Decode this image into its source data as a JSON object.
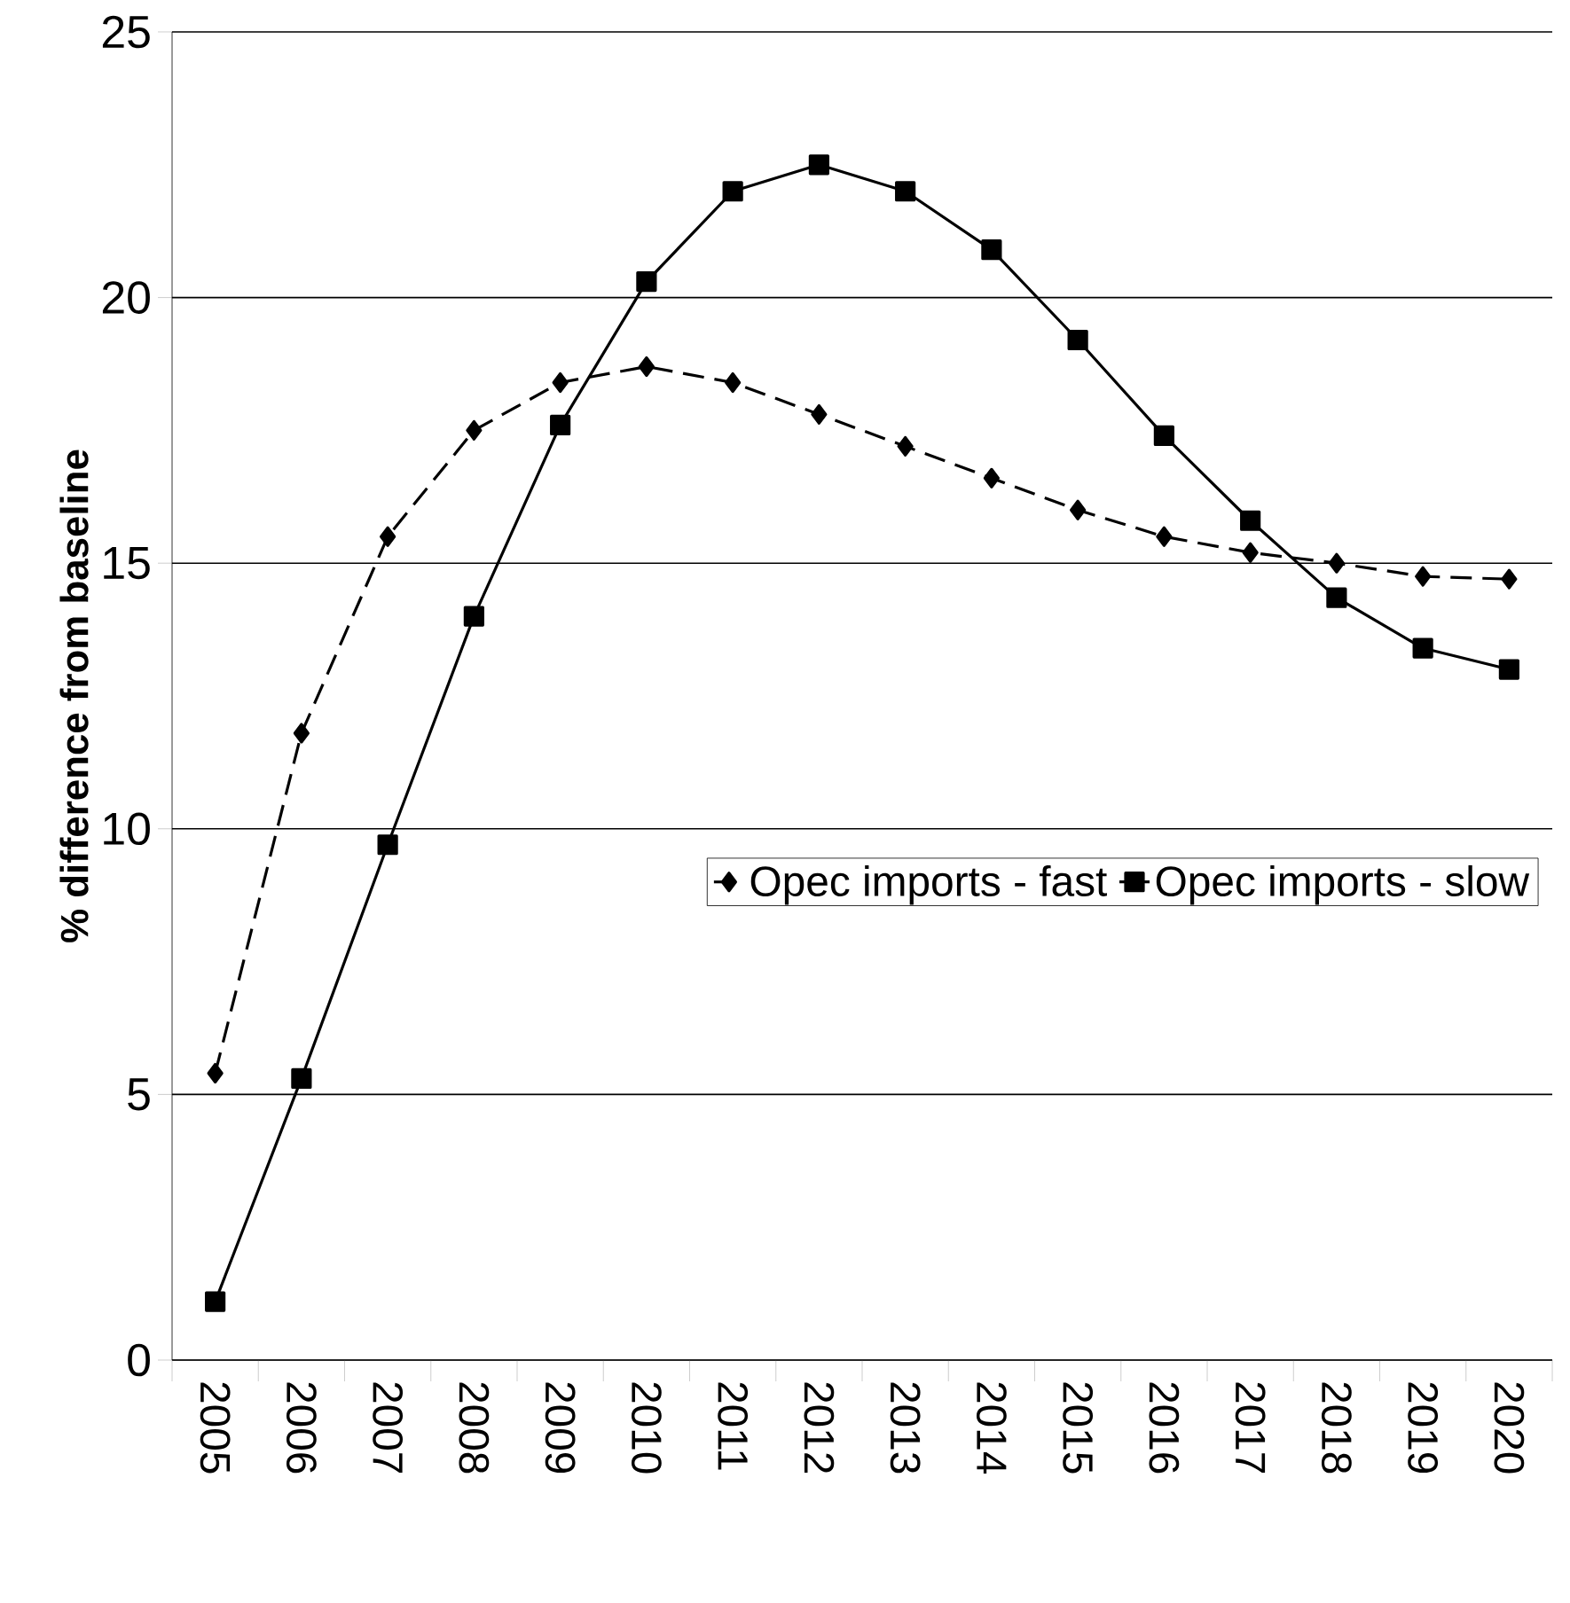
{
  "chart_data": {
    "type": "line",
    "ylabel": "% difference from baseline",
    "categories": [
      "2005",
      "2006",
      "2007",
      "2008",
      "2009",
      "2010",
      "2011",
      "2012",
      "2013",
      "2014",
      "2015",
      "2016",
      "2017",
      "2018",
      "2019",
      "2020"
    ],
    "series": [
      {
        "name": "Opec imports - fast",
        "color": "#000000",
        "marker": "diamond",
        "line_style": "dashed",
        "values": [
          5.4,
          11.8,
          15.5,
          17.5,
          18.4,
          18.7,
          18.4,
          17.8,
          17.2,
          16.6,
          16.0,
          15.5,
          15.2,
          15.0,
          14.75,
          14.7
        ]
      },
      {
        "name": "Opec imports - slow",
        "color": "#000000",
        "marker": "square",
        "line_style": "solid",
        "values": [
          1.1,
          5.3,
          9.7,
          14.0,
          17.6,
          20.3,
          22.0,
          22.5,
          22.0,
          20.9,
          19.2,
          17.4,
          15.8,
          14.35,
          13.4,
          13.0
        ]
      }
    ],
    "ylim": [
      0,
      25
    ],
    "yticks": [
      0,
      5,
      10,
      15,
      20,
      25
    ],
    "grid": "y",
    "legend": "right"
  }
}
